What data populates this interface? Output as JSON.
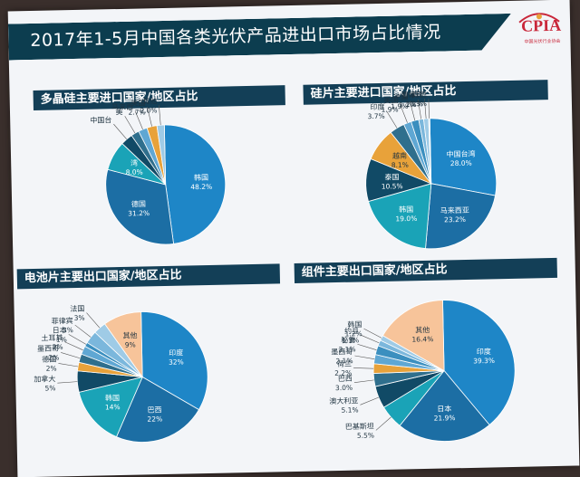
{
  "title": "2017年1-5月中国各类光伏产品进出口市场占比情况",
  "logo": {
    "word": "CPIA",
    "subtitle": "中国光伏行业协会",
    "color": "#c9273a"
  },
  "chart_data": [
    {
      "type": "pie",
      "title": "多晶硅主要进口国家/地区占比",
      "slices": [
        {
          "label": "韩国",
          "value": 48.2,
          "value_text": "48.2%",
          "color": "#1e86c7"
        },
        {
          "label": "德国",
          "value": 31.2,
          "value_text": "31.2%",
          "color": "#1c6ea4"
        },
        {
          "label": "湾",
          "value": 8.0,
          "value_text": "8.0%",
          "color": "#1aa3b7"
        },
        {
          "label": "中国台",
          "value": 3.3,
          "value_text": "",
          "color": "#114a66"
        },
        {
          "label": "美",
          "value": 2.2,
          "value_text": "",
          "color": "#2f6f8d"
        },
        {
          "label": "马来西",
          "value": 2.4,
          "value_text": "",
          "color": "#5fa7d3"
        },
        {
          "label": "美国",
          "value": 2.7,
          "value_text": "2.7%",
          "color": "#e8a23a"
        },
        {
          "label": "其他",
          "value": 2.0,
          "value_text": "2.0%",
          "color": "#9fcbe6"
        }
      ]
    },
    {
      "type": "pie",
      "title": "硅片主要进口国家/地区占比",
      "slices": [
        {
          "label": "中国台湾",
          "value": 28.0,
          "value_text": "28.0%",
          "color": "#1e86c7"
        },
        {
          "label": "马来西亚",
          "value": 23.2,
          "value_text": "23.2%",
          "color": "#1c6ea4"
        },
        {
          "label": "韩国",
          "value": 19.0,
          "value_text": "19.0%",
          "color": "#1aa3b7"
        },
        {
          "label": "泰国",
          "value": 10.5,
          "value_text": "10.5%",
          "color": "#114a66"
        },
        {
          "label": "越南",
          "value": 8.1,
          "value_text": "8.1%",
          "color": "#e8a23a"
        },
        {
          "label": "印度",
          "value": 3.7,
          "value_text": "3.7%",
          "color": "#2f6f8d"
        },
        {
          "label": "美国",
          "value": 1.9,
          "value_text": "1.9%",
          "color": "#5fa7d3"
        },
        {
          "label": "德国",
          "value": 1.9,
          "value_text": "1.9%",
          "color": "#3b8fbf"
        },
        {
          "label": "日本",
          "value": 1.2,
          "value_text": "1.2%",
          "color": "#7bb7dc"
        },
        {
          "label": "菲律宾",
          "value": 1.2,
          "value_text": "1.2%",
          "color": "#9fcbe6"
        },
        {
          "label": "其他",
          "value": 0.3,
          "value_text": "0.3%",
          "color": "#cfe3f0"
        }
      ]
    },
    {
      "type": "pie",
      "title": "电池片主要出口国家/地区占比",
      "slices": [
        {
          "label": "印度",
          "value": 32,
          "value_text": "32%",
          "color": "#1e86c7"
        },
        {
          "label": "巴西",
          "value": 22,
          "value_text": "22%",
          "color": "#1c6ea4"
        },
        {
          "label": "韩国",
          "value": 14,
          "value_text": "14%",
          "color": "#1aa3b7"
        },
        {
          "label": "加拿大",
          "value": 5,
          "value_text": "5%",
          "color": "#114a66"
        },
        {
          "label": "德国",
          "value": 2,
          "value_text": "2%",
          "color": "#e8a23a"
        },
        {
          "label": "墨西哥",
          "value": 2,
          "value_text": "2%",
          "color": "#2f6f8d"
        },
        {
          "label": "土耳其",
          "value": 2,
          "value_text": "2%",
          "color": "#5fa7d3"
        },
        {
          "label": "日本",
          "value": 1,
          "value_text": "1%",
          "color": "#3b8fbf"
        },
        {
          "label": "菲律宾",
          "value": 3,
          "value_text": "3%",
          "color": "#7bb7dc"
        },
        {
          "label": "法国",
          "value": 3,
          "value_text": "3%",
          "color": "#9fcbe6"
        },
        {
          "label": "其他",
          "value": 9,
          "value_text": "9%",
          "color": "#f7c49a"
        }
      ]
    },
    {
      "type": "pie",
      "title": "组件主要出口国家/地区占比",
      "slices": [
        {
          "label": "印度",
          "value": 39.3,
          "value_text": "39.3%",
          "color": "#1e86c7"
        },
        {
          "label": "日本",
          "value": 21.9,
          "value_text": "21.9%",
          "color": "#1c6ea4"
        },
        {
          "label": "巴基斯坦",
          "value": 5.5,
          "value_text": "5.5%",
          "color": "#1aa3b7"
        },
        {
          "label": "澳大利亚",
          "value": 5.1,
          "value_text": "5.1%",
          "color": "#114a66"
        },
        {
          "label": "巴西",
          "value": 3.0,
          "value_text": "3.0%",
          "color": "#2f6f8d"
        },
        {
          "label": "荷兰",
          "value": 2.2,
          "value_text": "2.2%",
          "color": "#e8a23a"
        },
        {
          "label": "墨西哥",
          "value": 2.1,
          "value_text": "2.1%",
          "color": "#5fa7d3"
        },
        {
          "label": "秘鲁",
          "value": 2.1,
          "value_text": "2.1%",
          "color": "#3b8fbf"
        },
        {
          "label": "约旦",
          "value": 1.3,
          "value_text": "1.3%",
          "color": "#7bb7dc"
        },
        {
          "label": "韩国",
          "value": 1.2,
          "value_text": "1.2%",
          "color": "#9fcbe6"
        },
        {
          "label": "其他",
          "value": 16.4,
          "value_text": "16.4%",
          "color": "#f7c49a"
        }
      ]
    }
  ]
}
